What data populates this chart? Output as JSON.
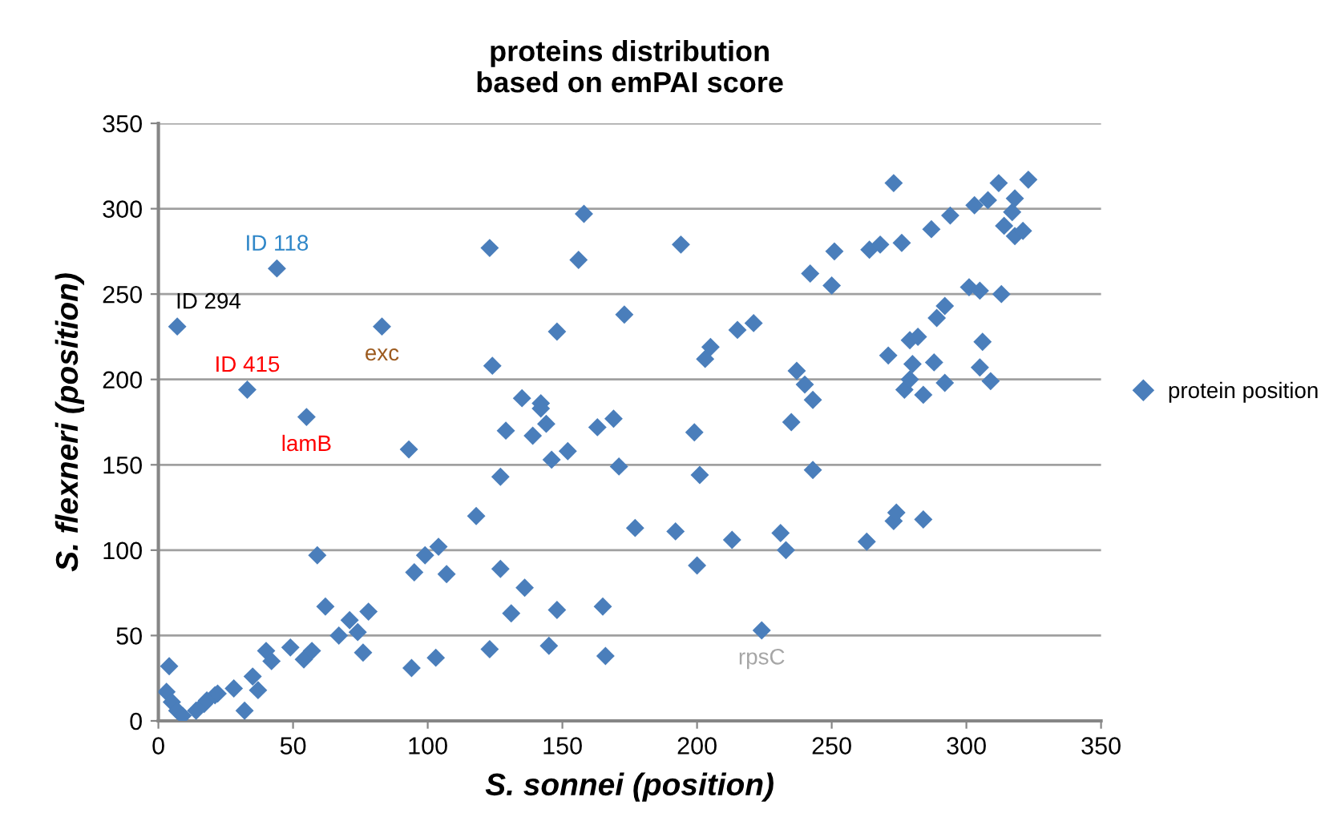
{
  "chart_data": {
    "type": "scatter",
    "title": "proteins distribution\nbased on emPAI score",
    "xlabel": "S. sonnei (position)",
    "ylabel": "S. flexneri (position)",
    "xlim": [
      0,
      350
    ],
    "ylim": [
      0,
      350
    ],
    "xticks": [
      0,
      50,
      100,
      150,
      200,
      250,
      300,
      350
    ],
    "yticks": [
      0,
      50,
      100,
      150,
      200,
      250,
      300,
      350
    ],
    "grid": "y",
    "legend": "right",
    "marker": "diamond",
    "series": [
      {
        "name": "protein position",
        "color": "#4a7ebb",
        "x": [
          3,
          4,
          5,
          7,
          9,
          14,
          17,
          18,
          21,
          22,
          28,
          32,
          35,
          37,
          40,
          42,
          49,
          54,
          57,
          59,
          62,
          67,
          71,
          74,
          76,
          78,
          94,
          95,
          99,
          103,
          104,
          107,
          118,
          123,
          123,
          124,
          127,
          127,
          129,
          131,
          135,
          136,
          139,
          142,
          142,
          144,
          145,
          146,
          148,
          148,
          152,
          156,
          158,
          163,
          165,
          166,
          169,
          171,
          173,
          177,
          192,
          194,
          199,
          200,
          201,
          203,
          205,
          213,
          215,
          221,
          224,
          231,
          233,
          235,
          237,
          240,
          242,
          243,
          243,
          250,
          251,
          263,
          264,
          268,
          271,
          273,
          273,
          274,
          276,
          277,
          279,
          279,
          280,
          282,
          284,
          284,
          287,
          288,
          289,
          292,
          292,
          294,
          301,
          303,
          305,
          305,
          306,
          308,
          309,
          312,
          313,
          314,
          317,
          318,
          318,
          321,
          323,
          44,
          7,
          83,
          33,
          55,
          93
        ],
        "values": [
          17,
          32,
          11,
          6,
          3,
          6,
          10,
          12,
          15,
          16,
          19,
          6,
          26,
          18,
          41,
          35,
          43,
          36,
          41,
          97,
          67,
          50,
          59,
          52,
          40,
          64,
          31,
          87,
          97,
          37,
          102,
          86,
          120,
          42,
          277,
          208,
          143,
          89,
          170,
          63,
          189,
          78,
          167,
          186,
          183,
          174,
          44,
          153,
          65,
          228,
          158,
          270,
          297,
          172,
          67,
          38,
          177,
          149,
          238,
          113,
          111,
          279,
          169,
          91,
          144,
          212,
          219,
          106,
          229,
          233,
          53,
          110,
          100,
          175,
          205,
          197,
          262,
          188,
          147,
          255,
          275,
          105,
          276,
          279,
          214,
          117,
          315,
          122,
          280,
          194,
          200,
          223,
          209,
          225,
          118,
          191,
          288,
          210,
          236,
          243,
          198,
          296,
          254,
          302,
          252,
          207,
          222,
          305,
          199,
          315,
          250,
          290,
          298,
          306,
          284,
          287,
          317,
          265,
          231,
          231,
          194,
          178,
          159
        ]
      }
    ],
    "annotations": [
      {
        "text": "ID 118",
        "x": 44,
        "y": 265
      },
      {
        "text": "ID 294",
        "x": 7,
        "y": 231
      },
      {
        "text": "ID 415",
        "x": 33,
        "y": 194
      },
      {
        "text": "exc",
        "x": 83,
        "y": 231
      },
      {
        "text": "lamB",
        "x": 55,
        "y": 178
      },
      {
        "text": "rpsC",
        "x": 224,
        "y": 53
      }
    ]
  }
}
